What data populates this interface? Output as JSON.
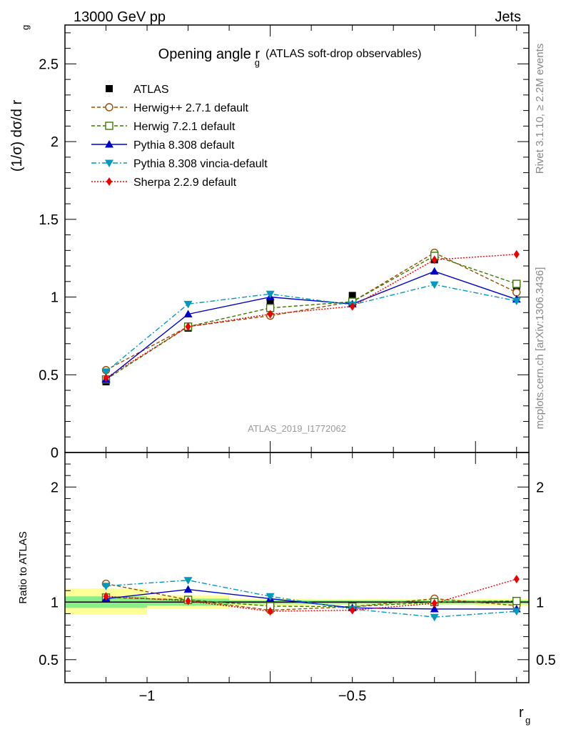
{
  "header": {
    "energy": "13000 GeV pp",
    "process": "Jets",
    "rivet": "Rivet 3.1.10, ≥ 2.2M events",
    "mcplots": "mcplots.cern.ch [arXiv:1306.3436]",
    "analysis_id": "ATLAS_2019_I1772062"
  },
  "chart_data": [
    {
      "type": "line",
      "title": "Opening angle r",
      "title_sub": "g",
      "title_note": "(ATLAS soft-drop observables)",
      "ylabel": "(1/σ) dσ/d r",
      "ylabel_sub": "g",
      "xlim": [
        -1.2,
        -0.07
      ],
      "ylim": [
        0,
        2.75
      ],
      "yticks": [
        "0",
        "0.5",
        "1",
        "1.5",
        "2",
        "2.5"
      ],
      "legend_position": "top-left",
      "x": [
        -1.1,
        -0.9,
        -0.7,
        -0.5,
        -0.3,
        -0.1
      ],
      "series": [
        {
          "name": "ATLAS",
          "color": "#000000",
          "marker": "square-filled",
          "dash": "none",
          "values": [
            0.455,
            0.8,
            0.97,
            1.01,
            1.24,
            1.07
          ]
        },
        {
          "name": "Herwig++ 2.7.1 default",
          "color": "#994c00",
          "marker": "circle-open",
          "dash": "dashed",
          "values": [
            0.53,
            0.81,
            0.88,
            0.97,
            1.285,
            1.03
          ]
        },
        {
          "name": "Herwig 7.2.1 default",
          "color": "#3a7a00",
          "marker": "square-open",
          "dash": "dashed",
          "values": [
            0.47,
            0.81,
            0.93,
            0.97,
            1.265,
            1.085
          ]
        },
        {
          "name": "Pythia 8.308 default",
          "color": "#0000cc",
          "marker": "triangle-up",
          "dash": "none",
          "values": [
            0.47,
            0.89,
            1.0,
            0.955,
            1.165,
            0.985
          ]
        },
        {
          "name": "Pythia 8.308 vincia-default",
          "color": "#0099bb",
          "marker": "triangle-down",
          "dash": "dashdot",
          "values": [
            0.52,
            0.955,
            1.02,
            0.95,
            1.08,
            0.975
          ]
        },
        {
          "name": "Sherpa 2.2.9 default",
          "color": "#ee0000",
          "marker": "diamond",
          "dash": "dotted",
          "values": [
            0.48,
            0.81,
            0.89,
            0.94,
            1.24,
            1.275
          ]
        }
      ]
    },
    {
      "type": "line",
      "ylabel": "Ratio to ATLAS",
      "xlabel": "r",
      "xlabel_sub": "g",
      "xlim": [
        -1.2,
        -0.07
      ],
      "ylim": [
        0.3,
        2.3
      ],
      "xticks": [
        "−1",
        "−0.5"
      ],
      "yticks": [
        "0.5",
        "1",
        "2"
      ],
      "x": [
        -1.1,
        -0.9,
        -0.7,
        -0.5,
        -0.3,
        -0.1
      ],
      "uncertainty_bands": [
        {
          "x_range": [
            -1.2,
            -1.0
          ],
          "inner": [
            0.95,
            1.05
          ],
          "outer": [
            0.89,
            1.12
          ]
        },
        {
          "x_range": [
            -1.0,
            -0.8
          ],
          "inner": [
            0.97,
            1.03
          ],
          "outer": [
            0.94,
            1.06
          ]
        },
        {
          "x_range": [
            -0.8,
            -0.6
          ],
          "inner": [
            0.985,
            1.015
          ],
          "outer": [
            0.97,
            1.03
          ]
        },
        {
          "x_range": [
            -0.6,
            -0.4
          ],
          "inner": [
            0.985,
            1.015
          ],
          "outer": [
            0.975,
            1.025
          ]
        },
        {
          "x_range": [
            -0.4,
            -0.2
          ],
          "inner": [
            0.985,
            1.015
          ],
          "outer": [
            0.975,
            1.025
          ]
        },
        {
          "x_range": [
            -0.2,
            -0.07
          ],
          "inner": [
            0.985,
            1.015
          ],
          "outer": [
            0.97,
            1.03
          ]
        }
      ],
      "series": [
        {
          "name": "Herwig++ 2.7.1 default",
          "values": [
            1.16,
            1.02,
            0.93,
            0.96,
            1.03,
            0.97
          ]
        },
        {
          "name": "Herwig 7.2.1 default",
          "values": [
            1.04,
            1.02,
            0.965,
            0.96,
            1.0,
            1.01
          ]
        },
        {
          "name": "Pythia 8.308 default",
          "values": [
            1.03,
            1.11,
            1.03,
            0.95,
            0.94,
            0.94
          ]
        },
        {
          "name": "Pythia 8.308 vincia-default",
          "values": [
            1.14,
            1.19,
            1.05,
            0.94,
            0.87,
            0.92
          ]
        },
        {
          "name": "Sherpa 2.2.9 default",
          "values": [
            1.05,
            1.01,
            0.92,
            0.93,
            0.99,
            1.2
          ]
        }
      ]
    }
  ]
}
